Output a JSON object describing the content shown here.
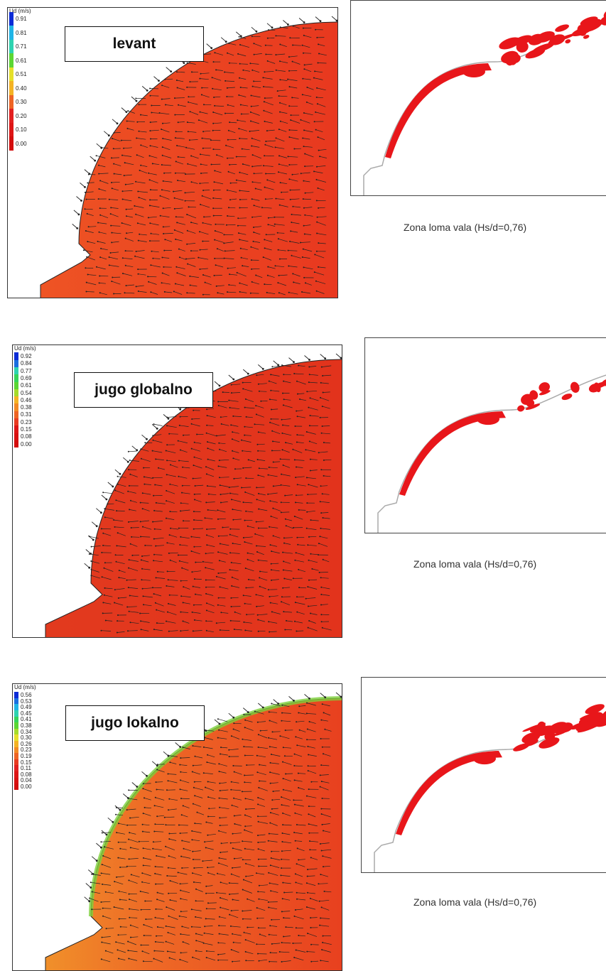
{
  "rows": [
    {
      "label": "levant",
      "legend_title": "Ud (m/s)",
      "legend_values": [
        "0.91",
        "0.81",
        "0.71",
        "0.61",
        "0.51",
        "0.40",
        "0.30",
        "0.20",
        "0.10",
        "0.00"
      ],
      "caption": "Zona loma vala (Hs/d=0,76)"
    },
    {
      "label": "jugo globalno",
      "legend_title": "Ud (m/s)",
      "legend_values": [
        "0.92",
        "0.84",
        "0.77",
        "0.69",
        "0.61",
        "0.54",
        "0.46",
        "0.38",
        "0.31",
        "0.23",
        "0.15",
        "0.08",
        "0.00"
      ],
      "caption": "Zona loma vala (Hs/d=0,76)"
    },
    {
      "label": "jugo lokalno",
      "legend_title": "Ud (m/s)",
      "legend_values": [
        "0.56",
        "0.53",
        "0.49",
        "0.45",
        "0.41",
        "0.38",
        "0.34",
        "0.30",
        "0.26",
        "0.23",
        "0.19",
        "0.15",
        "0.11",
        "0.08",
        "0.04",
        "0.00"
      ],
      "caption": "Zona loma vala (Hs/d=0,76)"
    }
  ],
  "colors": {
    "flow_field": "#e8381f",
    "breaking_zone": "#e8161a",
    "shoreline": "#222222"
  }
}
